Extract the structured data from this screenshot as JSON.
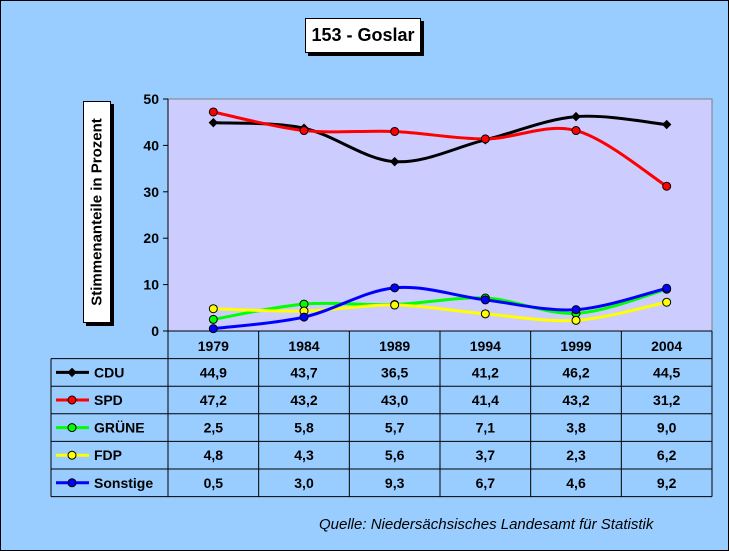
{
  "title": "153 - Goslar",
  "source": "Quelle: Niedersächsisches Landesamt für Statistik",
  "chart_data": {
    "type": "line",
    "title": "153 - Goslar",
    "xlabel": "",
    "ylabel": "Stimmenanteile in Prozent",
    "ylim": [
      0,
      50
    ],
    "yticks": [
      0,
      10,
      20,
      30,
      40,
      50
    ],
    "categories": [
      "1979",
      "1984",
      "1989",
      "1994",
      "1999",
      "2004"
    ],
    "grid": false,
    "plot_background": "#ccccff",
    "legend": "table-below",
    "series": [
      {
        "name": "CDU",
        "color": "#000000",
        "marker_fill": "#000000",
        "marker": "diamond",
        "values": [
          44.9,
          43.7,
          36.5,
          41.2,
          46.2,
          44.5
        ],
        "labels": [
          "44,9",
          "43,7",
          "36,5",
          "41,2",
          "46,2",
          "44,5"
        ]
      },
      {
        "name": "SPD",
        "color": "#ff0000",
        "marker_fill": "#ff0000",
        "marker": "circle",
        "values": [
          47.2,
          43.2,
          43.0,
          41.4,
          43.2,
          31.2
        ],
        "labels": [
          "47,2",
          "43,2",
          "43,0",
          "41,4",
          "43,2",
          "31,2"
        ]
      },
      {
        "name": "GRÜNE",
        "color": "#00ff00",
        "marker_fill": "#00ff00",
        "marker": "circle",
        "values": [
          2.5,
          5.8,
          5.7,
          7.1,
          3.8,
          9.0
        ],
        "labels": [
          "2,5",
          "5,8",
          "5,7",
          "7,1",
          "3,8",
          "9,0"
        ]
      },
      {
        "name": "FDP",
        "color": "#ffff00",
        "marker_fill": "#ffff00",
        "marker": "circle",
        "values": [
          4.8,
          4.3,
          5.6,
          3.7,
          2.3,
          6.2
        ],
        "labels": [
          "4,8",
          "4,3",
          "5,6",
          "3,7",
          "2,3",
          "6,2"
        ]
      },
      {
        "name": "Sonstige",
        "color": "#0000ff",
        "marker_fill": "#0000ff",
        "marker": "circle",
        "values": [
          0.5,
          3.0,
          9.3,
          6.7,
          4.6,
          9.2
        ],
        "labels": [
          "0,5",
          "3,0",
          "9,3",
          "6,7",
          "4,6",
          "9,2"
        ]
      }
    ]
  }
}
